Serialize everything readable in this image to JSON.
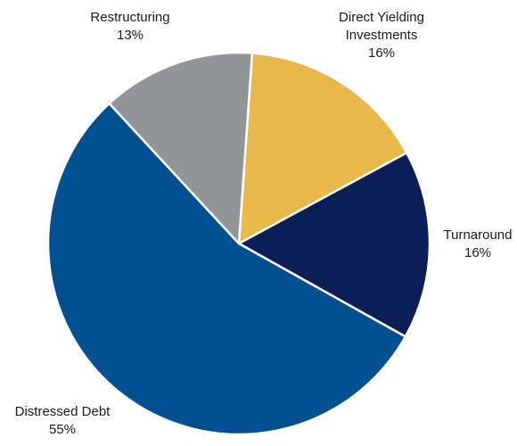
{
  "chart_data": {
    "type": "pie",
    "title": "",
    "slices": [
      {
        "label_lines": [
          "Direct Yielding",
          "Investments"
        ],
        "value": 16,
        "value_label": "16%",
        "color": "#e8b84a"
      },
      {
        "label_lines": [
          "Turnaround"
        ],
        "value": 16,
        "value_label": "16%",
        "color": "#0b1f56"
      },
      {
        "label_lines": [
          "Distressed Debt"
        ],
        "value": 55,
        "value_label": "55%",
        "color": "#00508f"
      },
      {
        "label_lines": [
          "Restructuring"
        ],
        "value": 13,
        "value_label": "13%",
        "color": "#929496"
      }
    ],
    "legend": "none",
    "data_labels": "outside"
  }
}
